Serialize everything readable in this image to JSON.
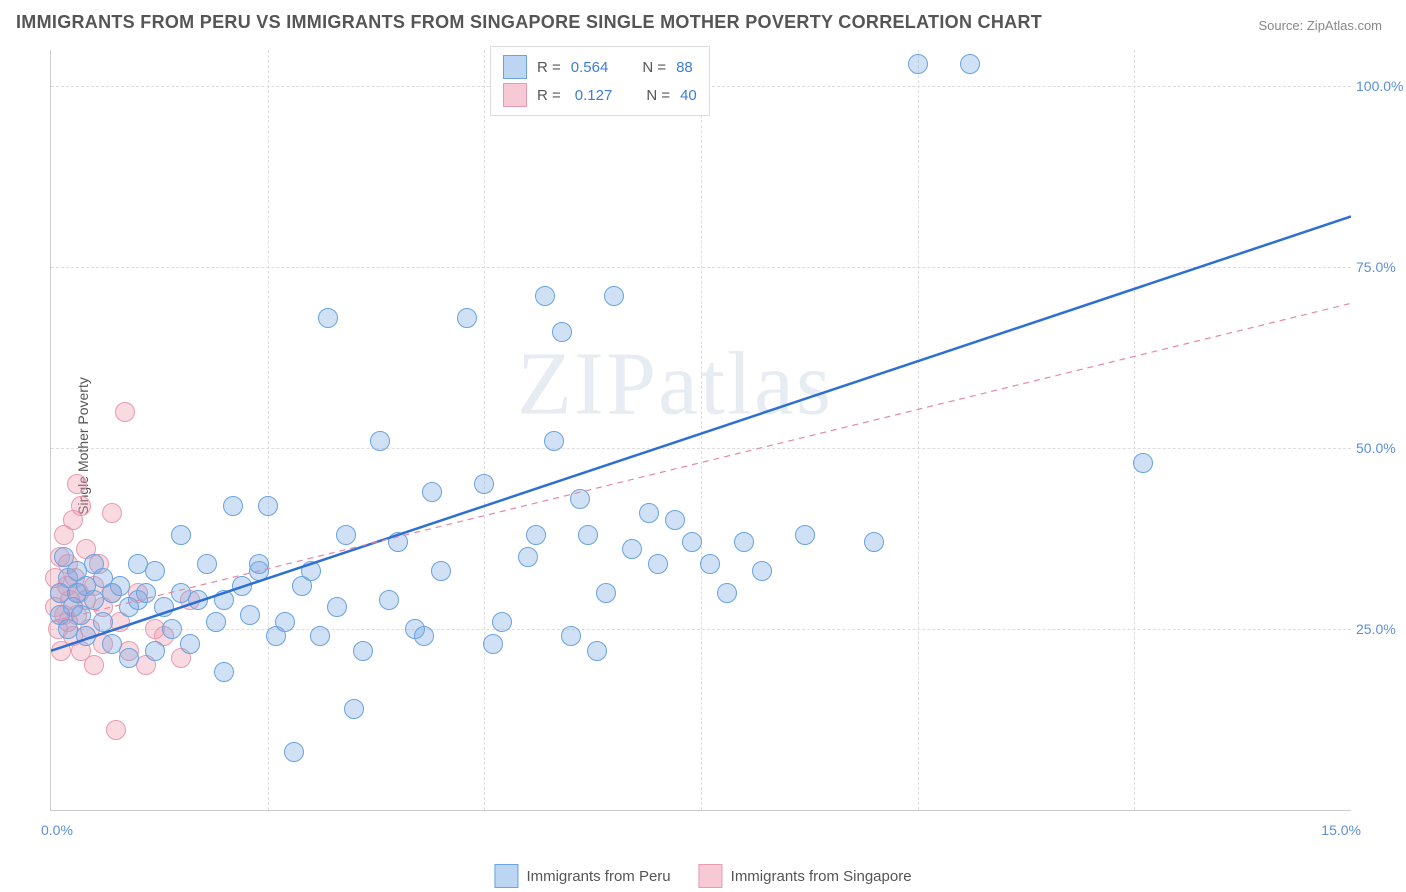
{
  "title": "IMMIGRANTS FROM PERU VS IMMIGRANTS FROM SINGAPORE SINGLE MOTHER POVERTY CORRELATION CHART",
  "source": "Source: ZipAtlas.com",
  "ylabel": "Single Mother Poverty",
  "watermark": "ZIPatlas",
  "chart": {
    "type": "scatter",
    "xlim": [
      0,
      15
    ],
    "ylim": [
      0,
      105
    ],
    "xtick_labels": {
      "left": "0.0%",
      "right": "15.0%"
    },
    "ytick_positions": [
      25,
      50,
      75,
      100
    ],
    "ytick_labels": [
      "25.0%",
      "50.0%",
      "75.0%",
      "100.0%"
    ],
    "xgrid_positions": [
      2.5,
      5.0,
      7.5,
      10.0,
      12.5
    ],
    "background_color": "#ffffff",
    "grid_color": "#dddddd",
    "point_radius": 9,
    "series": [
      {
        "name": "Immigrants from Peru",
        "color_fill": "rgba(120,170,230,0.35)",
        "color_stroke": "#6aa3e0",
        "swatch_fill": "#bcd5f2",
        "swatch_stroke": "#6aa3e0",
        "trend_color": "#2d6fd2",
        "trend_width": 2.5,
        "trend_dash": "none",
        "trend_y0": 22,
        "trend_y15": 82,
        "R": "0.564",
        "N": "88",
        "points": [
          [
            0.1,
            30
          ],
          [
            0.1,
            27
          ],
          [
            0.15,
            35
          ],
          [
            0.2,
            32
          ],
          [
            0.2,
            25
          ],
          [
            0.25,
            28
          ],
          [
            0.3,
            33
          ],
          [
            0.3,
            30
          ],
          [
            0.35,
            27
          ],
          [
            0.4,
            31
          ],
          [
            0.4,
            24
          ],
          [
            0.5,
            29
          ],
          [
            0.5,
            34
          ],
          [
            0.6,
            32
          ],
          [
            0.6,
            26
          ],
          [
            0.7,
            30
          ],
          [
            0.7,
            23
          ],
          [
            0.8,
            31
          ],
          [
            0.9,
            28
          ],
          [
            0.9,
            21
          ],
          [
            1.0,
            29
          ],
          [
            1.0,
            34
          ],
          [
            1.1,
            30
          ],
          [
            1.2,
            22
          ],
          [
            1.2,
            33
          ],
          [
            1.3,
            28
          ],
          [
            1.4,
            25
          ],
          [
            1.5,
            30
          ],
          [
            1.5,
            38
          ],
          [
            1.6,
            23
          ],
          [
            1.7,
            29
          ],
          [
            1.8,
            34
          ],
          [
            1.9,
            26
          ],
          [
            2.0,
            29
          ],
          [
            2.0,
            19
          ],
          [
            2.1,
            42
          ],
          [
            2.2,
            31
          ],
          [
            2.3,
            27
          ],
          [
            2.4,
            33
          ],
          [
            2.4,
            34
          ],
          [
            2.5,
            42
          ],
          [
            2.6,
            24
          ],
          [
            2.7,
            26
          ],
          [
            2.8,
            8
          ],
          [
            2.9,
            31
          ],
          [
            3.0,
            33
          ],
          [
            3.1,
            24
          ],
          [
            3.2,
            68
          ],
          [
            3.3,
            28
          ],
          [
            3.4,
            38
          ],
          [
            3.5,
            14
          ],
          [
            3.6,
            22
          ],
          [
            3.8,
            51
          ],
          [
            3.9,
            29
          ],
          [
            4.0,
            37
          ],
          [
            4.2,
            25
          ],
          [
            4.3,
            24
          ],
          [
            4.4,
            44
          ],
          [
            4.5,
            33
          ],
          [
            4.8,
            68
          ],
          [
            5.0,
            45
          ],
          [
            5.1,
            23
          ],
          [
            5.2,
            26
          ],
          [
            5.5,
            35
          ],
          [
            5.6,
            38
          ],
          [
            5.7,
            71
          ],
          [
            5.8,
            51
          ],
          [
            5.9,
            66
          ],
          [
            6.0,
            24
          ],
          [
            6.1,
            43
          ],
          [
            6.2,
            38
          ],
          [
            6.3,
            22
          ],
          [
            6.4,
            30
          ],
          [
            6.5,
            71
          ],
          [
            6.7,
            36
          ],
          [
            6.9,
            41
          ],
          [
            7.0,
            34
          ],
          [
            7.2,
            40
          ],
          [
            7.4,
            37
          ],
          [
            7.6,
            34
          ],
          [
            7.8,
            30
          ],
          [
            8.0,
            37
          ],
          [
            8.2,
            33
          ],
          [
            8.7,
            38
          ],
          [
            9.5,
            37
          ],
          [
            10.0,
            103
          ],
          [
            10.6,
            103
          ],
          [
            12.6,
            48
          ]
        ]
      },
      {
        "name": "Immigrants from Singapore",
        "color_fill": "rgba(240,150,170,0.35)",
        "color_stroke": "#e89bb0",
        "swatch_fill": "#f7c9d4",
        "swatch_stroke": "#e89bb0",
        "trend_color": "#e38aa5",
        "trend_width": 1.2,
        "trend_dash": "6,5",
        "trend_y0": 26,
        "trend_y15": 70,
        "R": "0.127",
        "N": "40",
        "points": [
          [
            0.05,
            28
          ],
          [
            0.05,
            32
          ],
          [
            0.08,
            25
          ],
          [
            0.1,
            30
          ],
          [
            0.1,
            35
          ],
          [
            0.12,
            22
          ],
          [
            0.15,
            27
          ],
          [
            0.15,
            38
          ],
          [
            0.18,
            31
          ],
          [
            0.2,
            26
          ],
          [
            0.2,
            34
          ],
          [
            0.22,
            29
          ],
          [
            0.25,
            24
          ],
          [
            0.25,
            40
          ],
          [
            0.28,
            32
          ],
          [
            0.3,
            27
          ],
          [
            0.3,
            45
          ],
          [
            0.32,
            30
          ],
          [
            0.35,
            22
          ],
          [
            0.35,
            42
          ],
          [
            0.4,
            29
          ],
          [
            0.4,
            36
          ],
          [
            0.45,
            25
          ],
          [
            0.5,
            31
          ],
          [
            0.5,
            20
          ],
          [
            0.55,
            34
          ],
          [
            0.6,
            28
          ],
          [
            0.6,
            23
          ],
          [
            0.7,
            30
          ],
          [
            0.7,
            41
          ],
          [
            0.75,
            11
          ],
          [
            0.8,
            26
          ],
          [
            0.85,
            55
          ],
          [
            0.9,
            22
          ],
          [
            1.0,
            30
          ],
          [
            1.1,
            20
          ],
          [
            1.2,
            25
          ],
          [
            1.3,
            24
          ],
          [
            1.5,
            21
          ],
          [
            1.6,
            29
          ]
        ]
      }
    ]
  },
  "legend_top": {
    "R_label": "R =",
    "N_label": "N ="
  },
  "legend_bottom": {
    "series1": "Immigrants from Peru",
    "series2": "Immigrants from Singapore"
  }
}
